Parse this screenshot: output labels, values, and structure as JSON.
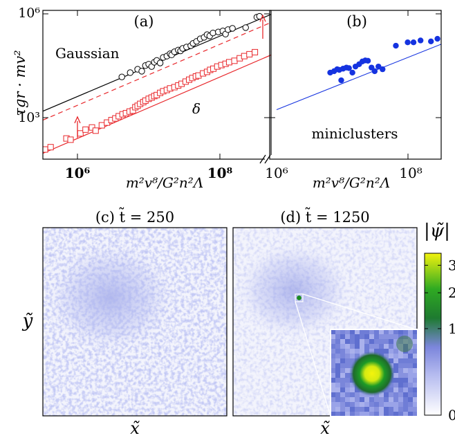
{
  "figure": {
    "ylabel_top": "τgr · mv²",
    "xlabel_a": "m²v⁸/G²n²Λ",
    "xlabel_b": "m²v⁸/G²n²Λ",
    "xlabel_bottom": "x̃",
    "xlabel_bottom_2": "x̃",
    "ylabel_bottom": "ỹ",
    "colorbar_label": "|ψ̃|",
    "colorbar_ticks": [
      "3",
      "2",
      "1",
      "0"
    ],
    "colorbar_tick_values": [
      3,
      2,
      1,
      0
    ],
    "colors": {
      "gaussian": "#000000",
      "delta": "#e8262a",
      "miniclusters": "#1533e0",
      "fit_b": "#1533e0",
      "colormap": [
        "#ffffff",
        "#9fa7ea",
        "#1a8b22",
        "#f2f20e"
      ]
    }
  },
  "chart_data": [
    {
      "id": "a",
      "type": "scatter",
      "panel_label": "(a)",
      "xlabel": "m²v⁸/G²n²Λ",
      "ylabel": "τgr · mv²",
      "x_scale": "log",
      "y_scale": "log",
      "xlim": [
        200000,
        1000000000
      ],
      "ylim": [
        40,
        1000000
      ],
      "x_ticks": [
        "10⁶",
        "10⁸"
      ],
      "y_ticks": [
        "10⁶",
        "10³"
      ],
      "annotations": [
        "Gaussian",
        "δ"
      ],
      "series": [
        {
          "marker": "circle-open",
          "color": "#000000",
          "fit": {
            "x": [
              200000,
              1000000000
            ],
            "y": [
              1000,
              1700000
            ]
          },
          "points": [
            [
              4200000.0,
              15000
            ],
            [
              5500000.0,
              20000
            ],
            [
              7000000.0,
              25000
            ],
            [
              8000000.0,
              22000
            ],
            [
              9000000.0,
              32000
            ],
            [
              10000000.0,
              35000
            ],
            [
              11000000.0,
              30000
            ],
            [
              12000000.0,
              40000
            ],
            [
              13000000.0,
              45000
            ],
            [
              14500000.0,
              38000
            ],
            [
              16000000.0,
              55000
            ],
            [
              18000000.0,
              60000
            ],
            [
              20000000.0,
              70000
            ],
            [
              21000000.0,
              65000
            ],
            [
              23000000.0,
              80000
            ],
            [
              26000000.0,
              90000
            ],
            [
              28000000.0,
              85000
            ],
            [
              30000000.0,
              100000
            ],
            [
              34000000.0,
              110000
            ],
            [
              39000000.0,
              120000
            ],
            [
              42000000.0,
              140000
            ],
            [
              47000000.0,
              160000
            ],
            [
              53000000.0,
              190000
            ],
            [
              60000000.0,
              210000
            ],
            [
              66000000.0,
              250000
            ],
            [
              72000000.0,
              230000
            ],
            [
              80000000.0,
              280000
            ],
            [
              95000000.0,
              300000
            ],
            [
              110000000.0,
              320000
            ],
            [
              120000000.0,
              260000
            ],
            [
              130000000.0,
              350000
            ],
            [
              150000000.0,
              380000
            ],
            [
              230000000.0,
              400000
            ],
            [
              330000000.0,
              800000
            ],
            [
              360000000.0,
              850000
            ]
          ]
        },
        {
          "marker": "square-open",
          "color": "#e8262a",
          "fit": {
            "x": [
              200000,
              1000000000
            ],
            "y": [
              60,
              115000
            ]
          },
          "fit_dashed": {
            "x": [
              200000,
              1000000000
            ],
            "y": [
              550,
              1000000
            ]
          },
          "points": [
            [
              350000.0,
              120
            ],
            [
              420000.0,
              140
            ],
            [
              700000.0,
              250
            ],
            [
              800000.0,
              230
            ],
            [
              1100000.0,
              350
            ],
            [
              1300000.0,
              450
            ],
            [
              1600000.0,
              520
            ],
            [
              1800000.0,
              420
            ],
            [
              2200000.0,
              600
            ],
            [
              2600000.0,
              720
            ],
            [
              3000000.0,
              850
            ],
            [
              3400000.0,
              950
            ],
            [
              3800000.0,
              1100
            ],
            [
              4300000.0,
              1250
            ],
            [
              4800000.0,
              1350
            ],
            [
              5400000.0,
              1500
            ],
            [
              6000000.0,
              1600
            ],
            [
              6500000.0,
              2000
            ],
            [
              7000000.0,
              2200
            ],
            [
              7600000.0,
              2500
            ],
            [
              8400000.0,
              2800
            ],
            [
              9000000.0,
              3100
            ],
            [
              10000000.0,
              3500
            ],
            [
              11000000.0,
              3800
            ],
            [
              12000000.0,
              4200
            ],
            [
              13000000.0,
              4500
            ],
            [
              14500000.0,
              5200
            ],
            [
              16000000.0,
              5800
            ],
            [
              18000000.0,
              6300
            ],
            [
              20000000.0,
              7000
            ],
            [
              23000000.0,
              7600
            ],
            [
              26000000.0,
              8500
            ],
            [
              29000000.0,
              9500
            ],
            [
              33000000.0,
              11000
            ],
            [
              37000000.0,
              12500
            ],
            [
              41000000.0,
              14000
            ],
            [
              46000000.0,
              15500
            ],
            [
              50000000.0,
              16500
            ],
            [
              58000000.0,
              19000
            ],
            [
              66000000.0,
              21000
            ],
            [
              73000000.0,
              24000
            ],
            [
              81000000.0,
              26000
            ],
            [
              92000000.0,
              30000
            ],
            [
              105000000.0,
              33000
            ],
            [
              120000000.0,
              36000
            ],
            [
              135000000.0,
              40000
            ],
            [
              160000000.0,
              44000
            ],
            [
              190000000.0,
              52000
            ],
            [
              220000000.0,
              60000
            ],
            [
              260000000.0,
              68000
            ],
            [
              310000000.0,
              78000
            ]
          ]
        }
      ],
      "arrows": [
        {
          "x": 1000000.0,
          "y_from": 260,
          "y_to": 1050
        },
        {
          "x": 400000000.0,
          "y_from": 190000,
          "y_to": 900000
        }
      ]
    },
    {
      "id": "b",
      "type": "scatter",
      "panel_label": "(b)",
      "xlabel": "m²v⁸/G²n²Λ",
      "x_scale": "log",
      "y_scale": "log",
      "xlim": [
        1000000,
        1000000000
      ],
      "ylim": [
        40,
        1000000
      ],
      "x_ticks": [
        "10⁶",
        "10⁸"
      ],
      "annotations": [
        "miniclusters"
      ],
      "series": [
        {
          "marker": "circle-filled",
          "color": "#1533e0",
          "fit": {
            "x": [
              1000000,
              1000000000
            ],
            "y": [
              1700,
              350000
            ]
          },
          "points": [
            [
              6300000.0,
              20000
            ],
            [
              7200000.0,
              22000
            ],
            [
              8000000.0,
              25000
            ],
            [
              8600000.0,
              24000
            ],
            [
              9200000.0,
              12000
            ],
            [
              9800000.0,
              26000
            ],
            [
              11000000.0,
              28000
            ],
            [
              12000000.0,
              27000
            ],
            [
              13500000.0,
              20000
            ],
            [
              15000000.0,
              30000
            ],
            [
              17000000.0,
              35000
            ],
            [
              19000000.0,
              42000
            ],
            [
              21000000.0,
              45000
            ],
            [
              23000000.0,
              44000
            ],
            [
              26000000.0,
              28000
            ],
            [
              29000000.0,
              22000
            ],
            [
              33000000.0,
              30000
            ],
            [
              38000000.0,
              25000
            ],
            [
              60000000.0,
              120000
            ],
            [
              90000000.0,
              150000
            ],
            [
              110000000.0,
              150000
            ],
            [
              140000000.0,
              170000
            ],
            [
              200000000.0,
              160000
            ],
            [
              250000000.0,
              190000
            ]
          ]
        }
      ]
    }
  ],
  "panels": {
    "c": {
      "title": "(c) t̃ = 250"
    },
    "d": {
      "title": "(d) t̃ = 1250"
    }
  }
}
